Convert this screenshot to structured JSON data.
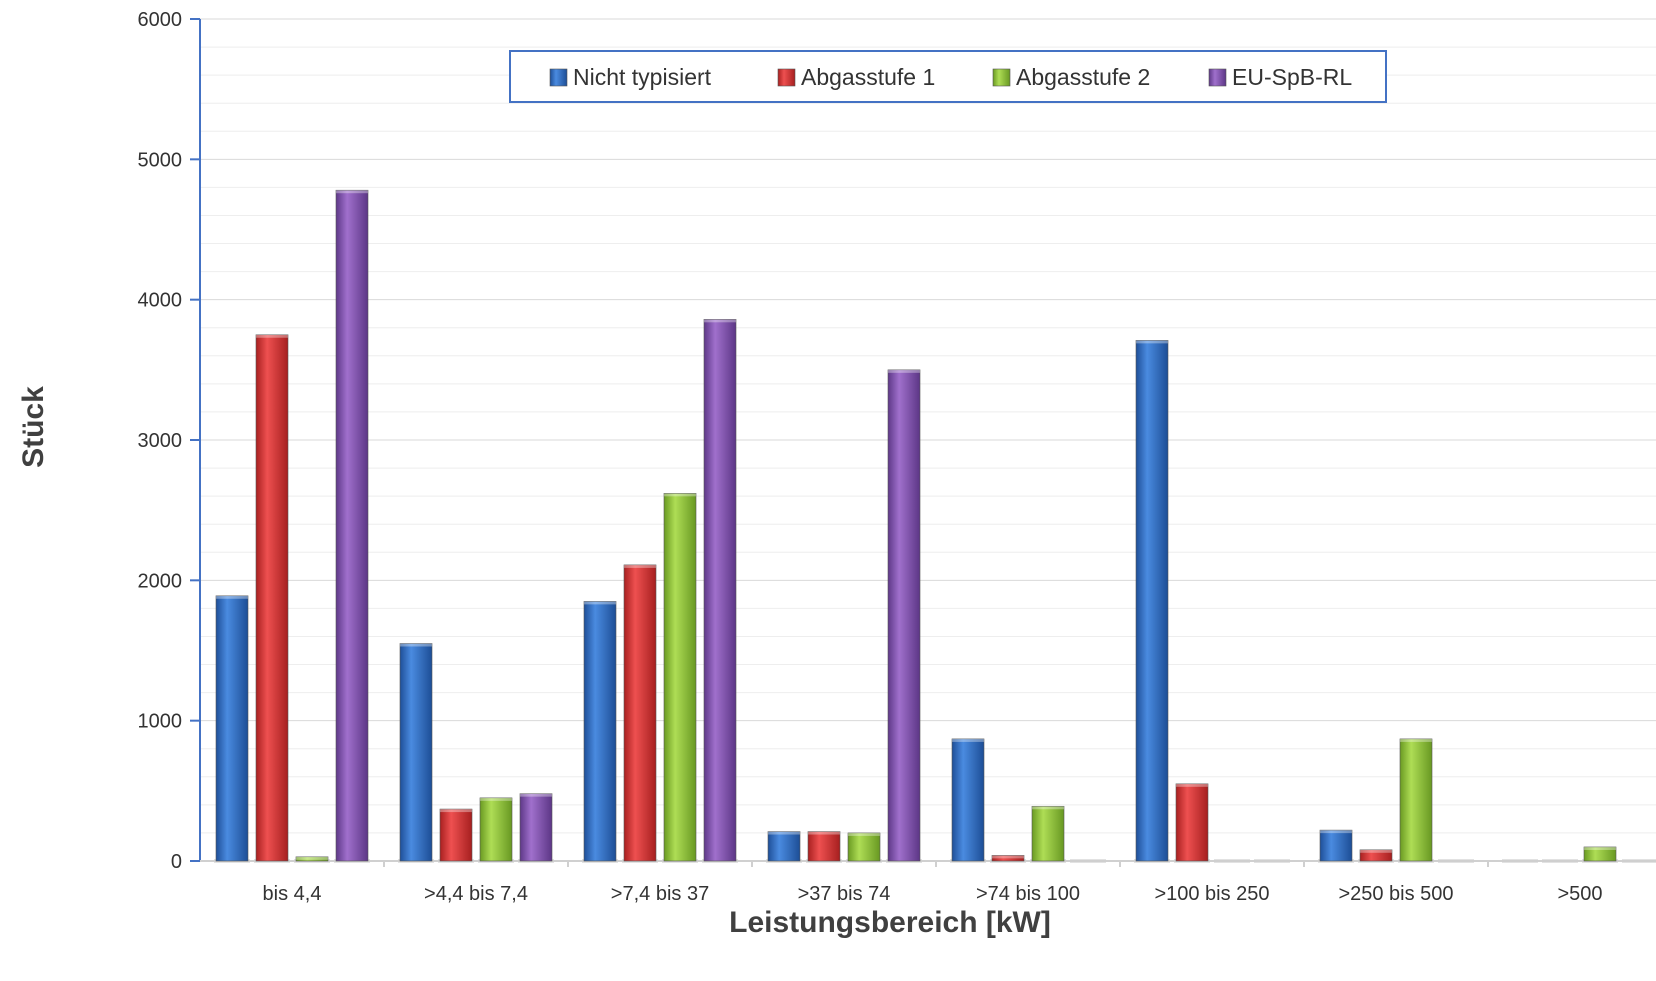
{
  "chart_data": {
    "type": "bar",
    "title": "",
    "xlabel": "Leistungsbereich [kW]",
    "ylabel": "Stück",
    "ylim": [
      0,
      6000
    ],
    "yticks": [
      0,
      1000,
      2000,
      3000,
      4000,
      5000,
      6000
    ],
    "grid": true,
    "legend_position": "top",
    "categories": [
      "bis 4,4",
      ">4,4 bis 7,4",
      ">7,4 bis 37",
      ">37 bis 74",
      ">74 bis 100",
      ">100 bis 250",
      ">250 bis 500",
      ">500"
    ],
    "series": [
      {
        "name": "Nicht typisiert",
        "color": "#2E6FC8",
        "values": [
          1890,
          1550,
          1850,
          210,
          870,
          3710,
          220,
          0
        ]
      },
      {
        "name": "Abgasstufe 1",
        "color": "#D93A3A",
        "values": [
          3750,
          370,
          2110,
          210,
          40,
          550,
          80,
          0
        ]
      },
      {
        "name": "Abgasstufe 2",
        "color": "#92C53C",
        "values": [
          30,
          450,
          2620,
          200,
          390,
          0,
          870,
          100
        ]
      },
      {
        "name": "EU-SpB-RL",
        "color": "#8655B0",
        "values": [
          4780,
          480,
          3860,
          3500,
          0,
          0,
          0,
          0
        ]
      }
    ]
  }
}
